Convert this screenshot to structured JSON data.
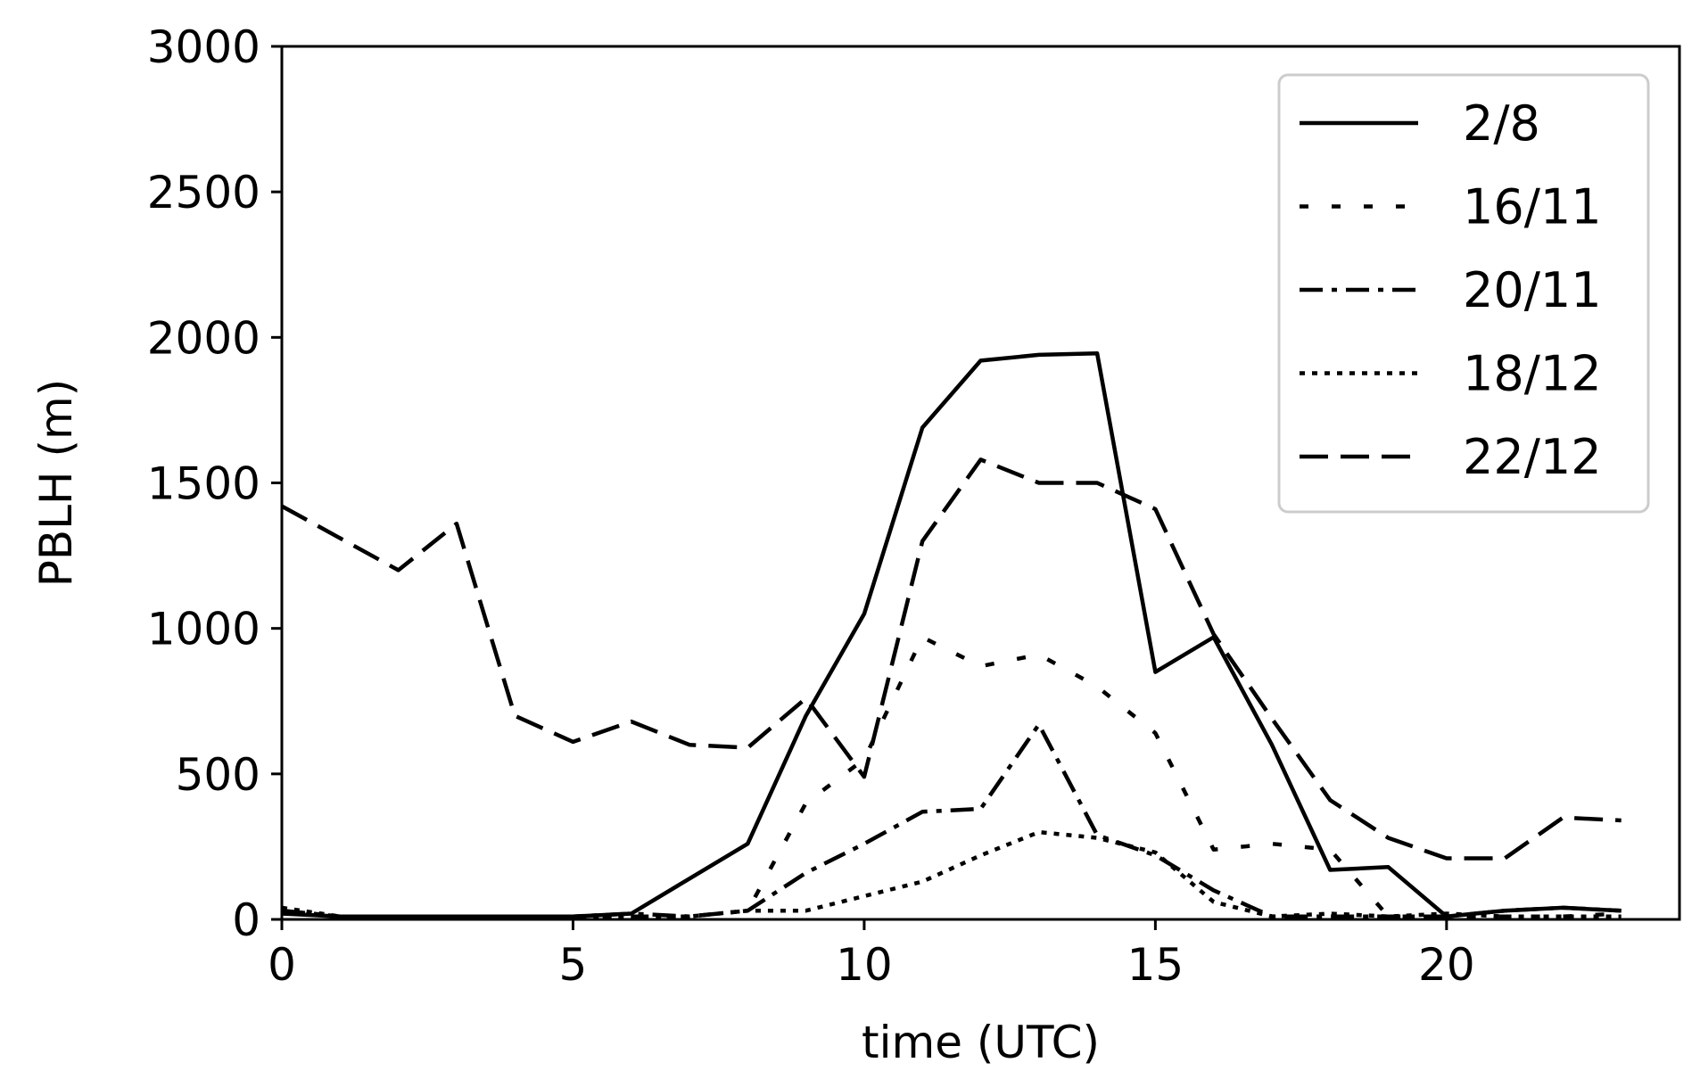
{
  "chart_data": {
    "type": "line",
    "xlabel": "time (UTC)",
    "ylabel": "PBLH (m)",
    "xlim": [
      0,
      24
    ],
    "ylim": [
      0,
      3000
    ],
    "xticks": [
      0,
      5,
      10,
      15,
      20
    ],
    "yticks": [
      0,
      500,
      1000,
      1500,
      2000,
      2500,
      3000
    ],
    "grid": false,
    "legend_position": "top-right",
    "x": [
      0,
      1,
      2,
      3,
      4,
      5,
      6,
      7,
      8,
      9,
      10,
      11,
      12,
      13,
      14,
      15,
      16,
      17,
      18,
      19,
      20,
      21,
      22,
      23
    ],
    "series": [
      {
        "name": "2/8",
        "style": "solid",
        "values": [
          20,
          10,
          10,
          10,
          10,
          10,
          20,
          140,
          260,
          700,
          1050,
          1690,
          1920,
          1940,
          1945,
          850,
          970,
          600,
          170,
          180,
          10,
          30,
          40,
          30
        ]
      },
      {
        "name": "16/11",
        "style": "dashed-short",
        "values": [
          30,
          10,
          10,
          10,
          10,
          10,
          10,
          10,
          30,
          400,
          550,
          970,
          870,
          910,
          800,
          640,
          240,
          260,
          240,
          10,
          10,
          10,
          10,
          20
        ]
      },
      {
        "name": "20/11",
        "style": "dashdot",
        "values": [
          30,
          10,
          10,
          10,
          10,
          10,
          20,
          10,
          30,
          160,
          260,
          370,
          380,
          670,
          290,
          220,
          100,
          10,
          10,
          10,
          10,
          30,
          40,
          30
        ]
      },
      {
        "name": "18/12",
        "style": "dotted",
        "values": [
          40,
          10,
          10,
          10,
          10,
          10,
          10,
          10,
          30,
          30,
          80,
          130,
          220,
          300,
          280,
          230,
          60,
          10,
          20,
          10,
          20,
          10,
          10,
          10
        ]
      },
      {
        "name": "22/12",
        "style": "dashed-long",
        "values": [
          1420,
          1310,
          1200,
          1360,
          700,
          610,
          680,
          600,
          590,
          760,
          490,
          1300,
          1580,
          1500,
          1500,
          1410,
          980,
          690,
          410,
          280,
          210,
          210,
          350,
          340
        ]
      }
    ]
  }
}
